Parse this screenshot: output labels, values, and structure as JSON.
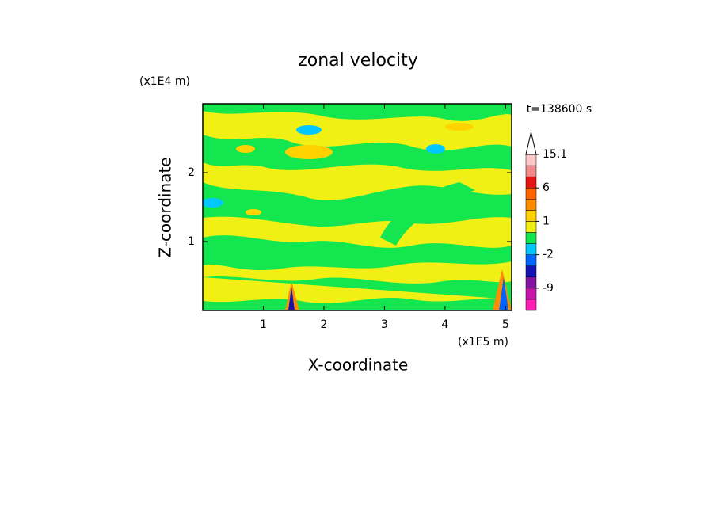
{
  "chart_data": {
    "type": "contour",
    "title": "zonal velocity",
    "x_label": "X-coordinate",
    "y_label": "Z-coordinate",
    "x_scale_label": "(x1E5 m)",
    "y_scale_label": "(x1E4 m)",
    "annotation": "t=138600 s",
    "xlim": [
      0,
      5.1
    ],
    "ylim": [
      0,
      3
    ],
    "xticks": [
      1,
      2,
      3,
      4,
      5
    ],
    "yticks": [
      1,
      2
    ],
    "colorbar": {
      "levels": [
        -15,
        -12,
        -9,
        -6,
        -4,
        -2,
        -1,
        0,
        1,
        2,
        4,
        6,
        9,
        12,
        15.1
      ],
      "colors": [
        "#ff1eb4",
        "#c814aa",
        "#8214a0",
        "#1414b4",
        "#0064ff",
        "#00c8ff",
        "#14e650",
        "#f0f014",
        "#ffd200",
        "#ff8c00",
        "#ff6400",
        "#e61414",
        "#f08c8c",
        "#ffc8c8"
      ],
      "ticks": [
        -9,
        -2,
        1,
        6,
        15.1
      ]
    }
  }
}
